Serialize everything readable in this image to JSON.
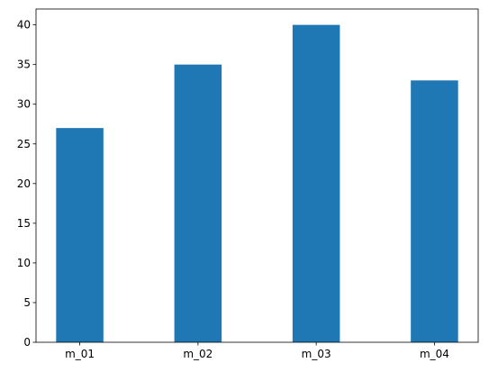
{
  "chart_data": {
    "type": "bar",
    "categories": [
      "m_01",
      "m_02",
      "m_03",
      "m_04"
    ],
    "values": [
      27,
      35,
      40,
      33
    ],
    "color": "#1f77b4",
    "ylim": [
      0,
      42
    ],
    "yticks": [
      0,
      5,
      10,
      15,
      20,
      25,
      30,
      35,
      40
    ],
    "grid": false
  }
}
